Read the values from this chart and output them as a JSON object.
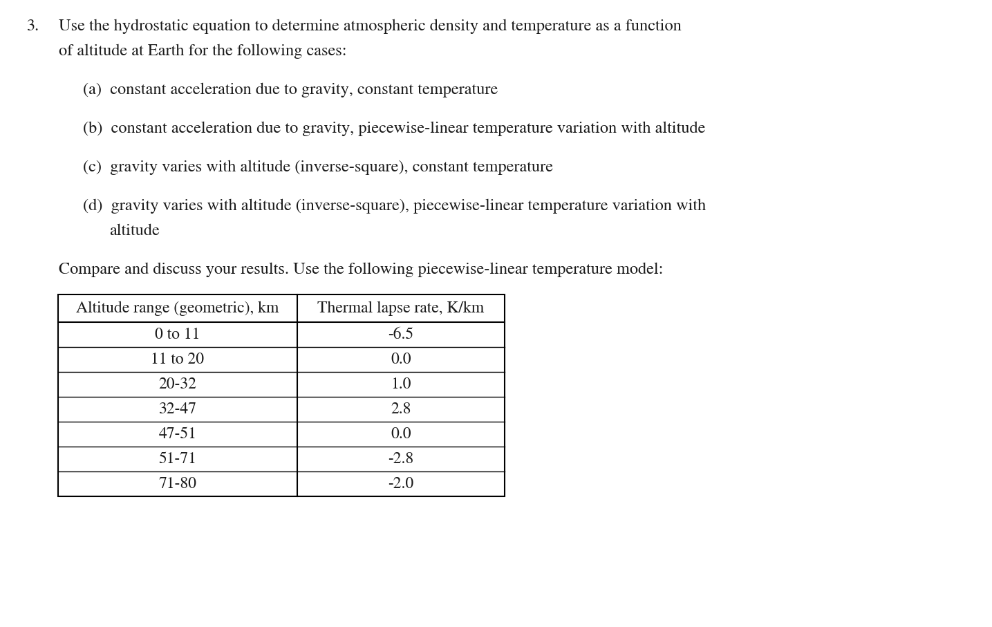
{
  "background_color": "#ffffff",
  "text_color": "#1a1a1a",
  "figure_width": 14.35,
  "figure_height": 9.07,
  "dpi": 100,
  "font_family": "STIXGeneral",
  "font_size": 17.5,
  "font_size_table": 17,
  "question_number": "3.",
  "q_line1": "Use the hydrostatic equation to determine atmospheric density and temperature as a function",
  "q_line2": "of altitude at Earth for the following cases:",
  "sub_a": "(a)  constant acceleration due to gravity, constant temperature",
  "sub_b": "(b)  constant acceleration due to gravity, piecewise-linear temperature variation with altitude",
  "sub_c": "(c)  gravity varies with altitude (inverse-square), constant temperature",
  "sub_d1": "(d)  gravity varies with altitude (inverse-square), piecewise-linear temperature variation with",
  "sub_d2": "altitude",
  "compare": "Compare and discuss your results. Use the following piecewise-linear temperature model:",
  "col1_header": "Altitude range (geometric), km",
  "col2_header": "Thermal lapse rate, K/km",
  "table_rows": [
    [
      "0 to 11",
      "-6.5"
    ],
    [
      "11 to 20",
      "0.0"
    ],
    [
      "20-32",
      "1.0"
    ],
    [
      "32-47",
      "2.8"
    ],
    [
      "47-51",
      "0.0"
    ],
    [
      "51-71",
      "-2.8"
    ],
    [
      "71-80",
      "-2.0"
    ]
  ]
}
